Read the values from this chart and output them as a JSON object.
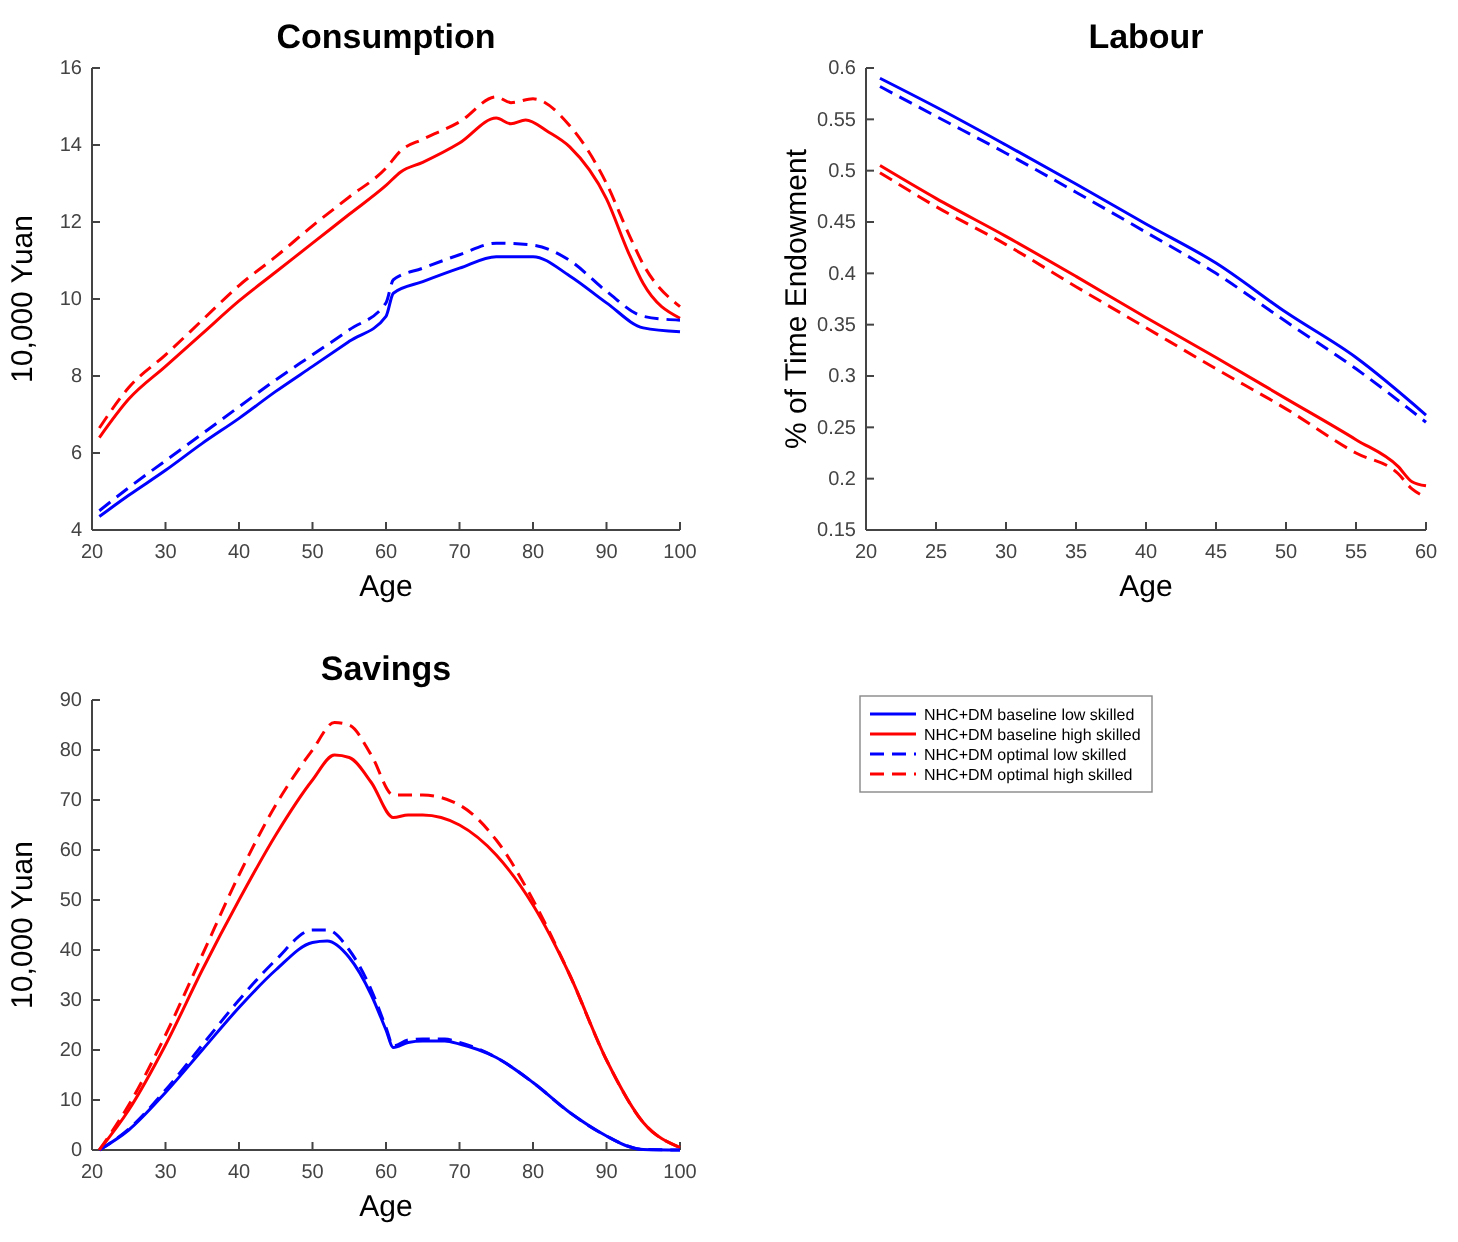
{
  "chart_data": [
    {
      "type": "line",
      "title": "Consumption",
      "xlabel": "Age",
      "ylabel": "10,000 Yuan",
      "xlim": [
        20,
        100
      ],
      "xticks": [
        20,
        30,
        40,
        50,
        60,
        70,
        80,
        90,
        100
      ],
      "ylim": [
        4,
        16
      ],
      "yticks": [
        4,
        6,
        8,
        10,
        12,
        14,
        16
      ],
      "grid": false,
      "series": [
        {
          "color": "#0000ff",
          "line_style": "solid",
          "x": [
            21,
            25,
            30,
            35,
            40,
            45,
            50,
            55,
            60,
            61,
            65,
            70,
            75,
            80,
            85,
            90,
            95,
            100
          ],
          "values": [
            4.35,
            4.9,
            5.55,
            6.25,
            6.9,
            7.6,
            8.25,
            8.9,
            9.55,
            10.15,
            10.45,
            10.8,
            11.1,
            11.1,
            10.6,
            9.9,
            9.25,
            9.15
          ]
        },
        {
          "color": "#ff0000",
          "line_style": "solid",
          "x": [
            21,
            25,
            30,
            35,
            40,
            45,
            50,
            55,
            60,
            62,
            65,
            70,
            75,
            77,
            79,
            82,
            85,
            90,
            93,
            95,
            100
          ],
          "values": [
            6.4,
            7.4,
            8.25,
            9.1,
            9.95,
            10.7,
            11.45,
            12.2,
            12.95,
            13.3,
            13.55,
            14.05,
            14.7,
            14.55,
            14.65,
            14.35,
            13.95,
            12.6,
            11.2,
            10.4,
            9.5
          ]
        },
        {
          "color": "#0000ff",
          "line_style": "dashed",
          "x": [
            21,
            25,
            30,
            35,
            40,
            45,
            50,
            55,
            60,
            61,
            65,
            70,
            75,
            80,
            85,
            90,
            95,
            100
          ],
          "values": [
            4.5,
            5.1,
            5.8,
            6.5,
            7.2,
            7.9,
            8.55,
            9.2,
            9.9,
            10.5,
            10.8,
            11.15,
            11.45,
            11.4,
            11.0,
            10.2,
            9.55,
            9.45
          ]
        },
        {
          "color": "#ff0000",
          "line_style": "dashed",
          "x": [
            21,
            25,
            30,
            35,
            40,
            45,
            50,
            55,
            60,
            62,
            65,
            70,
            75,
            77,
            80,
            85,
            90,
            93,
            95,
            100
          ],
          "values": [
            6.65,
            7.7,
            8.55,
            9.45,
            10.35,
            11.1,
            11.9,
            12.65,
            13.4,
            13.85,
            14.15,
            14.6,
            15.25,
            15.1,
            15.2,
            14.5,
            13.0,
            11.7,
            10.9,
            9.8
          ]
        }
      ]
    },
    {
      "type": "line",
      "title": "Labour",
      "xlabel": "Age",
      "ylabel": "% of Time Endowment",
      "xlim": [
        20,
        60
      ],
      "xticks": [
        20,
        25,
        30,
        35,
        40,
        45,
        50,
        55,
        60
      ],
      "ylim": [
        0.15,
        0.6
      ],
      "yticks": [
        0.15,
        0.2,
        0.25,
        0.3,
        0.35,
        0.4,
        0.45,
        0.5,
        0.55,
        0.6
      ],
      "grid": false,
      "series": [
        {
          "color": "#0000ff",
          "line_style": "solid",
          "x": [
            21,
            25,
            30,
            35,
            40,
            45,
            50,
            55,
            60
          ],
          "values": [
            0.59,
            0.562,
            0.525,
            0.487,
            0.448,
            0.41,
            0.362,
            0.318,
            0.262
          ]
        },
        {
          "color": "#ff0000",
          "line_style": "solid",
          "x": [
            21,
            25,
            30,
            35,
            40,
            45,
            50,
            55,
            58,
            59,
            60
          ],
          "values": [
            0.505,
            0.473,
            0.436,
            0.397,
            0.357,
            0.318,
            0.278,
            0.238,
            0.212,
            0.197,
            0.193
          ]
        },
        {
          "color": "#0000ff",
          "line_style": "dashed",
          "x": [
            21,
            25,
            30,
            35,
            40,
            45,
            50,
            55,
            60
          ],
          "values": [
            0.582,
            0.553,
            0.517,
            0.479,
            0.44,
            0.4,
            0.353,
            0.307,
            0.255
          ]
        },
        {
          "color": "#ff0000",
          "line_style": "dashed",
          "x": [
            21,
            25,
            30,
            35,
            40,
            45,
            50,
            55,
            58,
            59,
            60
          ],
          "values": [
            0.498,
            0.465,
            0.428,
            0.387,
            0.347,
            0.307,
            0.268,
            0.225,
            0.205,
            0.19,
            0.182
          ]
        }
      ]
    },
    {
      "type": "line",
      "title": "Savings",
      "xlabel": "Age",
      "ylabel": "10,000 Yuan",
      "xlim": [
        20,
        100
      ],
      "xticks": [
        20,
        30,
        40,
        50,
        60,
        70,
        80,
        90,
        100
      ],
      "ylim": [
        0,
        90
      ],
      "yticks": [
        0,
        10,
        20,
        30,
        40,
        50,
        60,
        70,
        80,
        90
      ],
      "grid": false,
      "legend": "right",
      "series": [
        {
          "name": "NHC+DM baseline low skilled",
          "color": "#0000ff",
          "line_style": "solid",
          "x": [
            21,
            25,
            30,
            35,
            40,
            45,
            50,
            52,
            55,
            58,
            60,
            61,
            63,
            65,
            68,
            70,
            75,
            80,
            85,
            90,
            93,
            95,
            100
          ],
          "values": [
            0,
            4,
            11.5,
            20,
            28.5,
            36,
            41.5,
            41.8,
            38.5,
            31,
            24,
            20.5,
            21.5,
            21.8,
            21.8,
            21.2,
            18.5,
            13.5,
            7.5,
            2.8,
            0.7,
            0.1,
            0
          ]
        },
        {
          "name": "NHC+DM baseline high skilled",
          "color": "#ff0000",
          "line_style": "solid",
          "x": [
            21,
            25,
            30,
            35,
            40,
            45,
            50,
            53,
            55,
            58,
            61,
            63,
            65,
            70,
            75,
            80,
            85,
            90,
            95,
            100
          ],
          "values": [
            0,
            8,
            21,
            36,
            50,
            63,
            74,
            79,
            78.5,
            73.5,
            66.5,
            67,
            67,
            65,
            59,
            49,
            35,
            18,
            5.5,
            0.5
          ]
        },
        {
          "name": "NHC+DM optimal low skilled",
          "color": "#0000ff",
          "line_style": "dashed",
          "x": [
            21,
            25,
            30,
            35,
            40,
            45,
            50,
            52,
            55,
            58,
            60,
            61,
            63,
            65,
            68,
            70,
            75,
            80,
            85,
            90,
            95,
            100
          ],
          "values": [
            0,
            4.2,
            12,
            21,
            30,
            38,
            44,
            44,
            40,
            32,
            24.5,
            20.8,
            22,
            22.2,
            22.2,
            21.5,
            18.5,
            13.5,
            7.5,
            2.8,
            0.1,
            0
          ]
        },
        {
          "name": "NHC+DM optimal high skilled",
          "color": "#ff0000",
          "line_style": "dashed",
          "x": [
            21,
            25,
            30,
            35,
            40,
            45,
            50,
            53,
            55,
            58,
            61,
            65,
            70,
            75,
            80,
            85,
            90,
            95,
            100
          ],
          "values": [
            0,
            9,
            23,
            39,
            55,
            69,
            80,
            85.5,
            85,
            79,
            71,
            71,
            69,
            62,
            50,
            35,
            18,
            5.5,
            0.5
          ]
        }
      ]
    }
  ]
}
